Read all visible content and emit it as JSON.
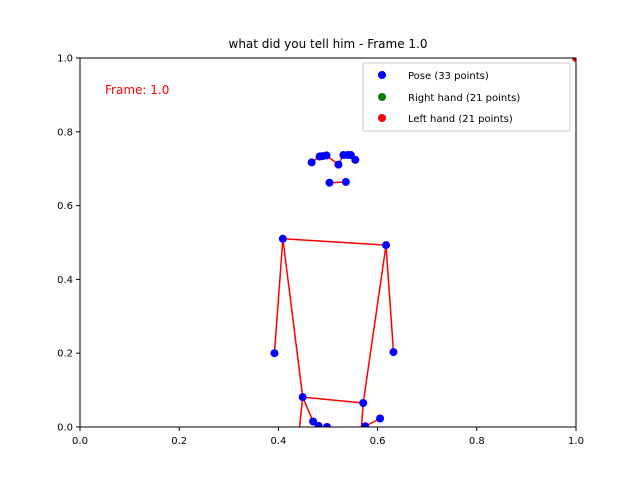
{
  "chart_data": {
    "type": "scatter",
    "title": "what did you tell him - Frame 1.0",
    "xlabel": "",
    "ylabel": "",
    "xlim": [
      0,
      1
    ],
    "ylim": [
      0,
      1
    ],
    "x_ticks": [
      "0.0",
      "0.2",
      "0.4",
      "0.6",
      "0.8",
      "1.0"
    ],
    "y_ticks": [
      "0.0",
      "0.2",
      "0.4",
      "0.6",
      "0.8",
      "1.0"
    ],
    "grid": false,
    "annotation": {
      "text": "Frame: 1.0",
      "color": "#ff0000"
    },
    "legend_position": "top-right",
    "legend": [
      {
        "label": "Pose (33 points)",
        "color": "#0000ff"
      },
      {
        "label": "Right hand (21 points)",
        "color": "#008000"
      },
      {
        "label": "Left hand (21 points)",
        "color": "#ff0000"
      }
    ],
    "connection_color": "#ff0000",
    "series": [
      {
        "name": "Pose (33 points)",
        "color": "#0000ff",
        "points": [
          [
            0.503,
            0.662
          ],
          [
            0.483,
            0.733
          ],
          [
            0.489,
            0.734
          ],
          [
            0.497,
            0.736
          ],
          [
            0.531,
            0.737
          ],
          [
            0.54,
            0.737
          ],
          [
            0.546,
            0.737
          ],
          [
            0.467,
            0.717
          ],
          [
            0.555,
            0.724
          ],
          [
            0.521,
            0.711
          ],
          [
            0.536,
            0.664
          ],
          [
            0.409,
            0.51
          ],
          [
            0.617,
            0.493
          ],
          [
            0.392,
            0.2
          ],
          [
            0.632,
            0.203
          ],
          [
            0.449,
            0.081
          ],
          [
            0.571,
            0.065
          ],
          [
            0.47,
            0.015
          ],
          [
            0.605,
            0.023
          ],
          [
            0.481,
            0.003
          ],
          [
            0.498,
            0.0
          ],
          [
            0.575,
            0.002
          ]
        ]
      },
      {
        "name": "Right hand (21 points)",
        "color": "#008000",
        "points": []
      },
      {
        "name": "Left hand (21 points)",
        "color": "#ff0000",
        "points": [
          [
            1.0,
            1.0
          ]
        ]
      }
    ],
    "connections": [
      [
        [
          0.467,
          0.717
        ],
        [
          0.483,
          0.733
        ]
      ],
      [
        [
          0.483,
          0.733
        ],
        [
          0.497,
          0.736
        ]
      ],
      [
        [
          0.497,
          0.736
        ],
        [
          0.521,
          0.711
        ]
      ],
      [
        [
          0.521,
          0.711
        ],
        [
          0.531,
          0.737
        ]
      ],
      [
        [
          0.531,
          0.737
        ],
        [
          0.546,
          0.737
        ]
      ],
      [
        [
          0.546,
          0.737
        ],
        [
          0.555,
          0.724
        ]
      ],
      [
        [
          0.503,
          0.662
        ],
        [
          0.536,
          0.664
        ]
      ],
      [
        [
          0.409,
          0.51
        ],
        [
          0.617,
          0.493
        ]
      ],
      [
        [
          0.409,
          0.51
        ],
        [
          0.392,
          0.2
        ]
      ],
      [
        [
          0.409,
          0.51
        ],
        [
          0.449,
          0.081
        ]
      ],
      [
        [
          0.617,
          0.493
        ],
        [
          0.632,
          0.203
        ]
      ],
      [
        [
          0.617,
          0.493
        ],
        [
          0.571,
          0.065
        ]
      ],
      [
        [
          0.449,
          0.081
        ],
        [
          0.571,
          0.065
        ]
      ],
      [
        [
          0.449,
          0.081
        ],
        [
          0.47,
          0.015
        ]
      ],
      [
        [
          0.47,
          0.015
        ],
        [
          0.481,
          0.003
        ]
      ],
      [
        [
          0.449,
          0.081
        ],
        [
          0.435,
          -0.1
        ]
      ],
      [
        [
          0.571,
          0.065
        ],
        [
          0.562,
          -0.1
        ]
      ],
      [
        [
          0.605,
          0.023
        ],
        [
          0.575,
          0.002
        ]
      ],
      [
        [
          0.575,
          0.002
        ],
        [
          0.56,
          -0.1
        ]
      ]
    ]
  }
}
